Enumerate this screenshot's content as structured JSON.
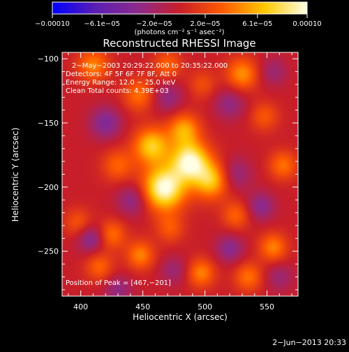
{
  "chart_data": {
    "type": "heatmap",
    "title": "Reconstructed RHESSI Image",
    "xlabel": "Heliocentric X (arcsec)",
    "ylabel": "Heliocentric Y (arcsec)",
    "xlim": [
      385,
      575
    ],
    "ylim": [
      -285,
      -95
    ],
    "x_ticks": [
      400,
      450,
      500,
      550
    ],
    "x_tick_labels": [
      "400",
      "450",
      "500",
      "550"
    ],
    "y_ticks": [
      -100,
      -150,
      -200,
      -250
    ],
    "y_tick_labels": [
      "−100",
      "−150",
      "−200",
      "−250"
    ],
    "colorbar": {
      "range": [
        -0.0001,
        0.0001
      ],
      "ticks": [
        -0.0001,
        -6.1e-05,
        -2e-05,
        2e-05,
        6.1e-05,
        0.0001
      ],
      "tick_labels": [
        "−0.00010",
        "−6.1e−05",
        "−2.0e−05",
        "2.0e−05",
        "6.1e−05",
        "0.00010"
      ],
      "unit_text": "(photons cm⁻² s⁻¹ asec⁻²)",
      "colors": [
        "#0000ff",
        "#5a1eb4",
        "#8c2a8c",
        "#c81e2a",
        "#ff5a00",
        "#ffc800",
        "#ffffe6"
      ]
    },
    "annotations": {
      "time": "2−May−2003 20:29:22.000 to 20:35:22.000",
      "detectors": "Detectors: 4F 5F 6F 7F 8F, Att 0",
      "energy": "Energy Range: 12.0 − 25.0 keV",
      "clean": "Clean     Total counts: 4.39E+03",
      "peak": "Position of Peak = [467,−201]"
    },
    "peak": {
      "x": 467,
      "y": -201
    },
    "sources": [
      {
        "x": 467,
        "y": -201,
        "amp": 1.0,
        "sigma": 12
      },
      {
        "x": 488,
        "y": -180,
        "amp": 0.95,
        "sigma": 11
      },
      {
        "x": 457,
        "y": -168,
        "amp": 0.7,
        "sigma": 10
      },
      {
        "x": 505,
        "y": -195,
        "amp": 0.65,
        "sigma": 10
      },
      {
        "x": 483,
        "y": -155,
        "amp": 0.55,
        "sigma": 9
      },
      {
        "x": 430,
        "y": -183,
        "amp": 0.35,
        "sigma": 9
      },
      {
        "x": 410,
        "y": -105,
        "amp": 0.45,
        "sigma": 9
      },
      {
        "x": 447,
        "y": -128,
        "amp": 0.4,
        "sigma": 9
      },
      {
        "x": 530,
        "y": -112,
        "amp": 0.5,
        "sigma": 9
      },
      {
        "x": 470,
        "y": -105,
        "amp": 0.35,
        "sigma": 8
      },
      {
        "x": 525,
        "y": -222,
        "amp": 0.35,
        "sigma": 8
      },
      {
        "x": 555,
        "y": -247,
        "amp": 0.45,
        "sigma": 8
      },
      {
        "x": 563,
        "y": -183,
        "amp": 0.4,
        "sigma": 8
      },
      {
        "x": 535,
        "y": -270,
        "amp": 0.4,
        "sigma": 8
      },
      {
        "x": 497,
        "y": -267,
        "amp": 0.45,
        "sigma": 8
      },
      {
        "x": 448,
        "y": -253,
        "amp": 0.45,
        "sigma": 8
      },
      {
        "x": 415,
        "y": -262,
        "amp": 0.35,
        "sigma": 8
      },
      {
        "x": 425,
        "y": -237,
        "amp": 0.4,
        "sigma": 8
      },
      {
        "x": 472,
        "y": -232,
        "amp": 0.3,
        "sigma": 8
      },
      {
        "x": 398,
        "y": -228,
        "amp": 0.3,
        "sigma": 8
      },
      {
        "x": 548,
        "y": -145,
        "amp": 0.3,
        "sigma": 8
      },
      {
        "x": 498,
        "y": -120,
        "amp": 0.25,
        "sigma": 8
      },
      {
        "x": 420,
        "y": -150,
        "amp": -0.4,
        "sigma": 9
      },
      {
        "x": 442,
        "y": -210,
        "amp": -0.35,
        "sigma": 9
      },
      {
        "x": 408,
        "y": -240,
        "amp": -0.4,
        "sigma": 8
      },
      {
        "x": 525,
        "y": -190,
        "amp": -0.3,
        "sigma": 9
      },
      {
        "x": 545,
        "y": -215,
        "amp": -0.35,
        "sigma": 8
      },
      {
        "x": 520,
        "y": -248,
        "amp": -0.35,
        "sigma": 8
      },
      {
        "x": 475,
        "y": -265,
        "amp": -0.25,
        "sigma": 8
      },
      {
        "x": 470,
        "y": -130,
        "amp": -0.3,
        "sigma": 9
      },
      {
        "x": 520,
        "y": -135,
        "amp": -0.3,
        "sigma": 9
      },
      {
        "x": 555,
        "y": -110,
        "amp": -0.25,
        "sigma": 8
      },
      {
        "x": 430,
        "y": -280,
        "amp": -0.3,
        "sigma": 8
      },
      {
        "x": 560,
        "y": -270,
        "amp": -0.25,
        "sigma": 8
      }
    ]
  },
  "footer": {
    "date": "2−Jun−2013 20:33"
  }
}
